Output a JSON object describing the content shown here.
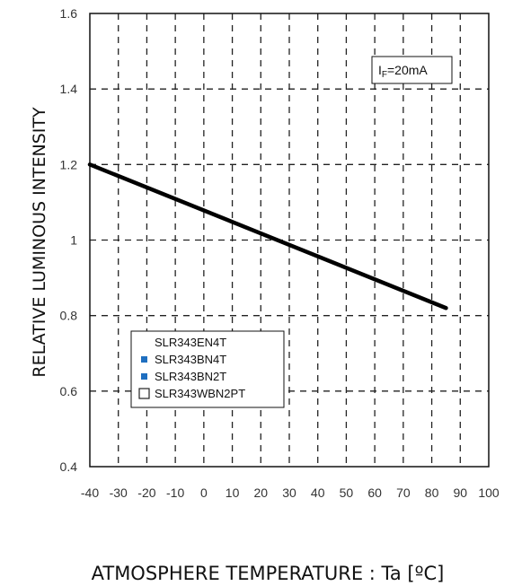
{
  "chart_data": {
    "type": "line",
    "xlabel": "ATMOSPHERE TEMPERATURE : Ta [ºC]",
    "ylabel": "RELATIVE LUMINOUS INTENSITY",
    "xlim": [
      -40,
      100
    ],
    "ylim": [
      0.4,
      1.6
    ],
    "x_ticks": [
      "-40",
      "-30",
      "-20",
      "-10",
      "0",
      "10",
      "20",
      "30",
      "40",
      "50",
      "60",
      "70",
      "80",
      "90",
      "100"
    ],
    "y_ticks": [
      "0.4",
      "0.6",
      "0.8",
      "1",
      "1.2",
      "1.4",
      "1.6"
    ],
    "grid": true,
    "annotation": {
      "main": "I",
      "sub": "F",
      "rest": "=20mA"
    },
    "legend": {
      "placement": "lower-left",
      "entries": [
        {
          "name": "SLR343EN4T",
          "marker": "none",
          "color": "#ffffff"
        },
        {
          "name": "SLR343BN4T",
          "marker": "filled-square",
          "color": "#1f6fc0"
        },
        {
          "name": "SLR343BN2T",
          "marker": "filled-square",
          "color": "#1f6fc0"
        },
        {
          "name": "SLR343WBN2PT",
          "marker": "hollow-square",
          "color": "#222222"
        }
      ]
    },
    "series": [
      {
        "color": "#000000",
        "points": [
          [
            -40,
            1.2
          ],
          [
            85,
            0.82
          ]
        ]
      }
    ]
  }
}
